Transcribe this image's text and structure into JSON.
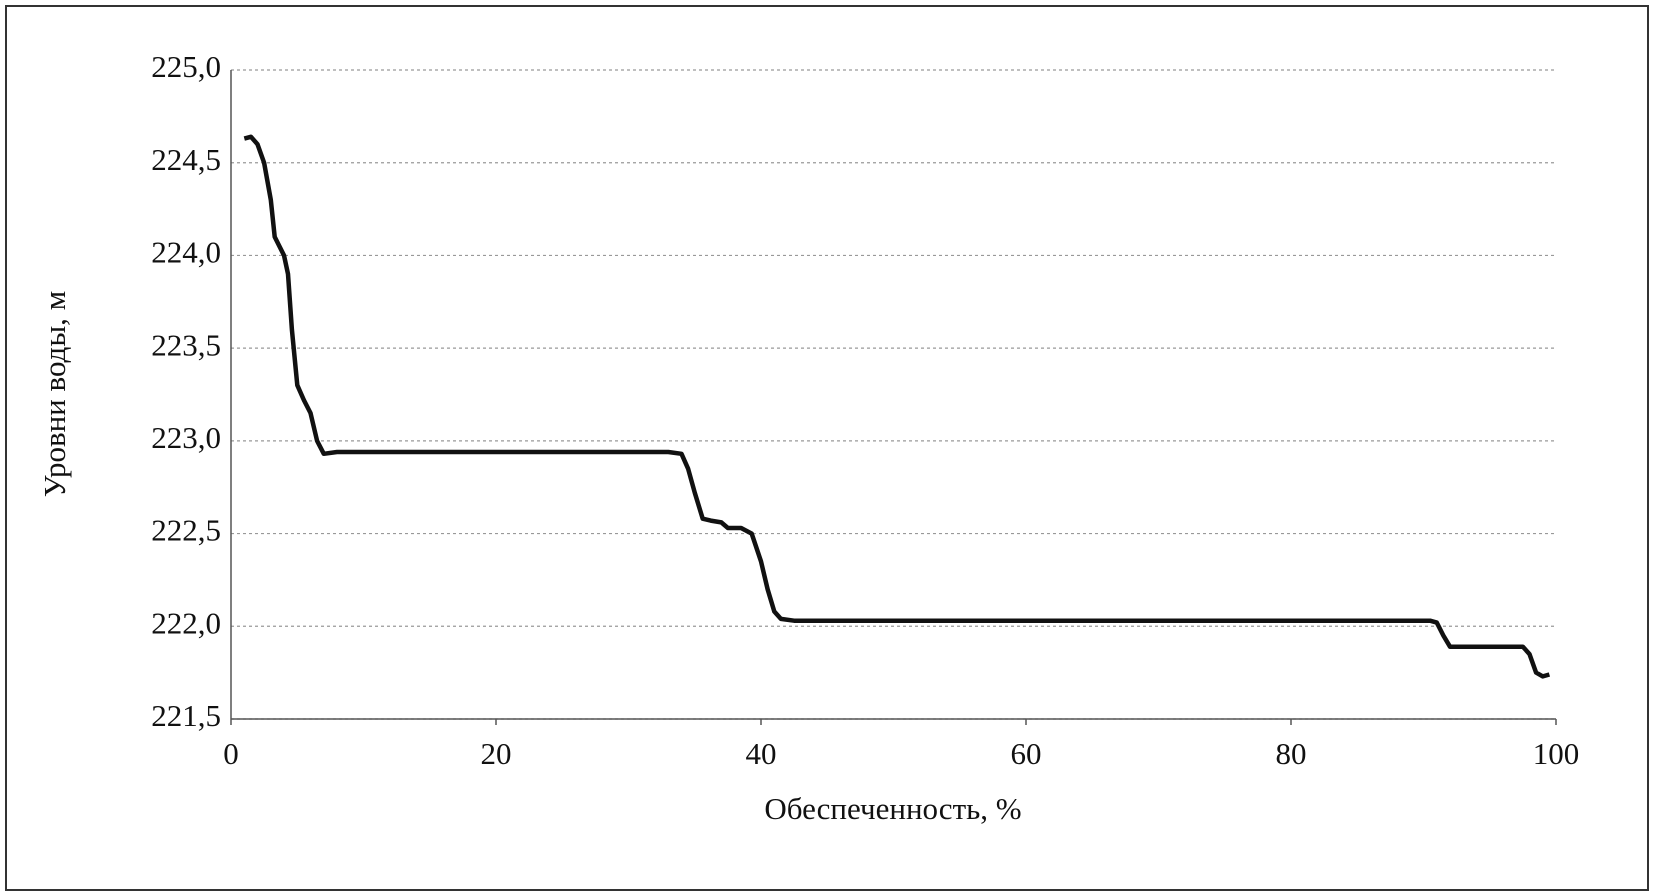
{
  "chart_data": {
    "type": "line",
    "x_label": "Обеспеченность, %",
    "y_label": "Уровни воды, м",
    "x": [
      1,
      1.5,
      2,
      2.5,
      3,
      3.3,
      4,
      4.3,
      4.6,
      5,
      5.5,
      6,
      6.5,
      7,
      8,
      20,
      33,
      34,
      34.5,
      35,
      35.6,
      36.2,
      37,
      37.5,
      38.5,
      39.3,
      40,
      40.5,
      41,
      41.5,
      42.5,
      60,
      90.5,
      91,
      91.5,
      92,
      93,
      97.5,
      98,
      98.5,
      99,
      99.5
    ],
    "series": [
      {
        "name": "Уровни воды",
        "color": "#111111",
        "values": [
          224.63,
          224.64,
          224.6,
          224.5,
          224.3,
          224.1,
          224.0,
          223.9,
          223.6,
          223.3,
          223.22,
          223.15,
          223.0,
          222.93,
          222.94,
          222.94,
          222.94,
          222.93,
          222.85,
          222.72,
          222.58,
          222.57,
          222.56,
          222.53,
          222.53,
          222.5,
          222.35,
          222.2,
          222.08,
          222.04,
          222.03,
          222.03,
          222.03,
          222.02,
          221.95,
          221.89,
          221.89,
          221.89,
          221.85,
          221.75,
          221.73,
          221.74
        ]
      }
    ],
    "xlim": [
      0,
      100
    ],
    "xticks": [
      0,
      20,
      40,
      60,
      80,
      100
    ],
    "ylim": [
      221.5,
      225.0
    ],
    "yticks": [
      {
        "value": 221.5,
        "label": "221,5"
      },
      {
        "value": 222.0,
        "label": "222,0"
      },
      {
        "value": 222.5,
        "label": "222,5"
      },
      {
        "value": 223.0,
        "label": "223,0"
      },
      {
        "value": 223.5,
        "label": "223,5"
      },
      {
        "value": 224.0,
        "label": "224,0"
      },
      {
        "value": 224.5,
        "label": "224,5"
      },
      {
        "value": 225.0,
        "label": "225,0"
      }
    ],
    "grid": true
  }
}
